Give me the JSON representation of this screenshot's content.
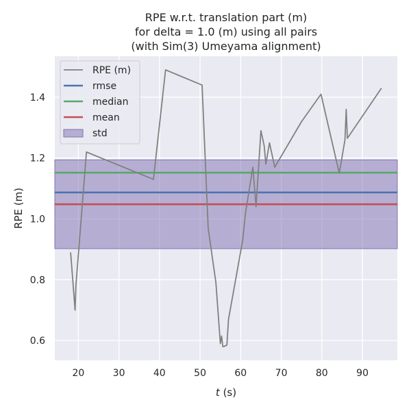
{
  "chart_data": {
    "type": "line",
    "title": [
      "RPE w.r.t. translation part (m)",
      "for delta = 1.0 (m) using all pairs",
      "(with Sim(3) Umeyama alignment)"
    ],
    "xlabel_var": "t",
    "xlabel_unit": " (s)",
    "ylabel": "RPE (m)",
    "xlim": [
      14.2,
      98.6
    ],
    "ylim": [
      0.535,
      1.535
    ],
    "xticks": [
      20,
      30,
      40,
      50,
      60,
      70,
      80,
      90
    ],
    "yticks": [
      0.6,
      0.8,
      1.0,
      1.2,
      1.4
    ],
    "ytick_labels": [
      "0.6",
      "0.8",
      "1.0",
      "1.2",
      "1.4"
    ],
    "grid": true,
    "legend_position": "top-left",
    "series": [
      {
        "name": "RPE (m)",
        "color": "#808080",
        "x": [
          18.1,
          19.2,
          19.4,
          22.0,
          38.5,
          41.5,
          50.5,
          52.0,
          53.9,
          55.0,
          55.3,
          55.6,
          55.8,
          56.6,
          57.0,
          60.5,
          61.2,
          63.0,
          63.8,
          65.0,
          65.8,
          66.2,
          67.1,
          68.4,
          75.0,
          79.8,
          84.3,
          85.7,
          86.0,
          86.3,
          94.7
        ],
        "y": [
          0.89,
          0.7,
          0.78,
          1.22,
          1.13,
          1.49,
          1.44,
          0.97,
          0.79,
          0.59,
          0.615,
          0.58,
          0.58,
          0.585,
          0.67,
          0.93,
          1.02,
          1.17,
          1.04,
          1.29,
          1.24,
          1.18,
          1.25,
          1.17,
          1.32,
          1.41,
          1.15,
          1.26,
          1.36,
          1.265,
          1.43
        ]
      },
      {
        "name": "rmse",
        "color": "#4c72b0",
        "value": 1.087
      },
      {
        "name": "median",
        "color": "#55a868",
        "value": 1.152
      },
      {
        "name": "mean",
        "color": "#c44e52",
        "value": 1.048
      },
      {
        "name": "std",
        "color": "#8172b2",
        "range": [
          0.902,
          1.194
        ]
      }
    ]
  }
}
